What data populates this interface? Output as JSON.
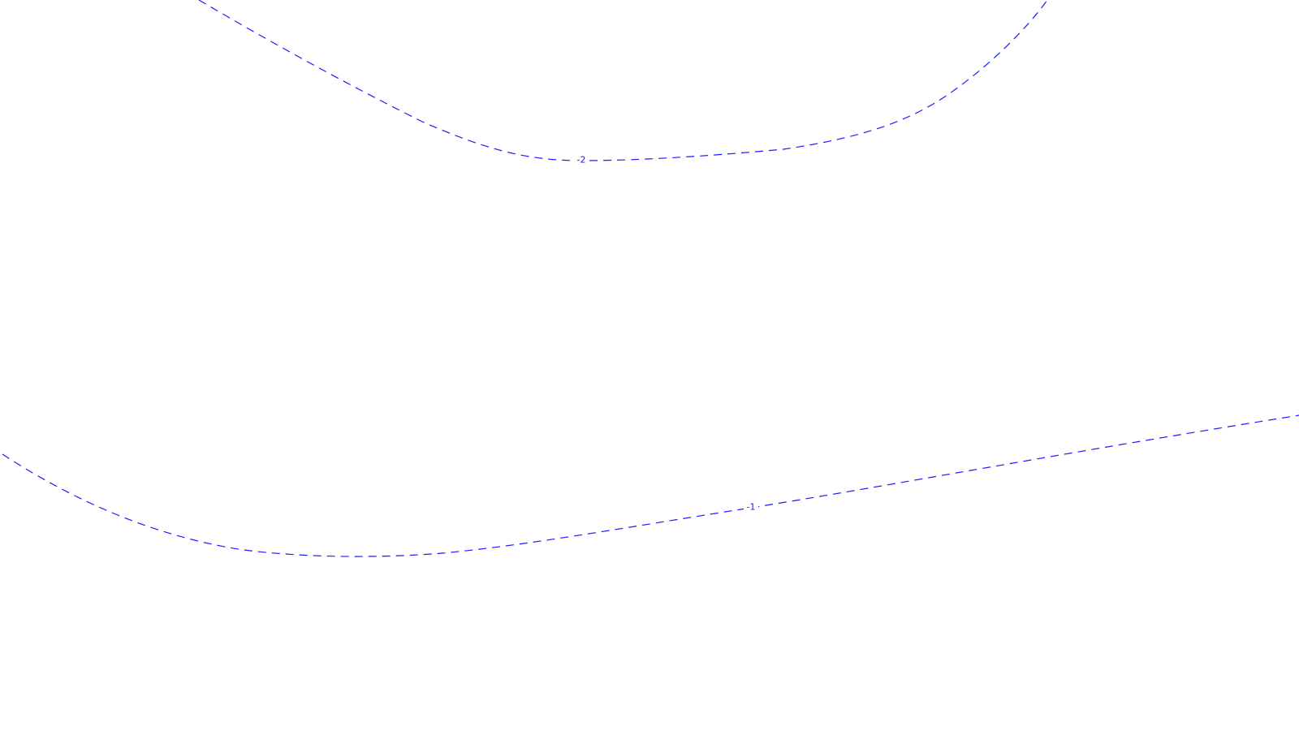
{
  "map": {
    "background": "#ffffff",
    "contour_color": "#1a1aff",
    "line_style": "dashed",
    "contours": [
      {
        "id": "contour-2",
        "label": "-2"
      },
      {
        "id": "contour-1",
        "label": "-1"
      }
    ]
  }
}
